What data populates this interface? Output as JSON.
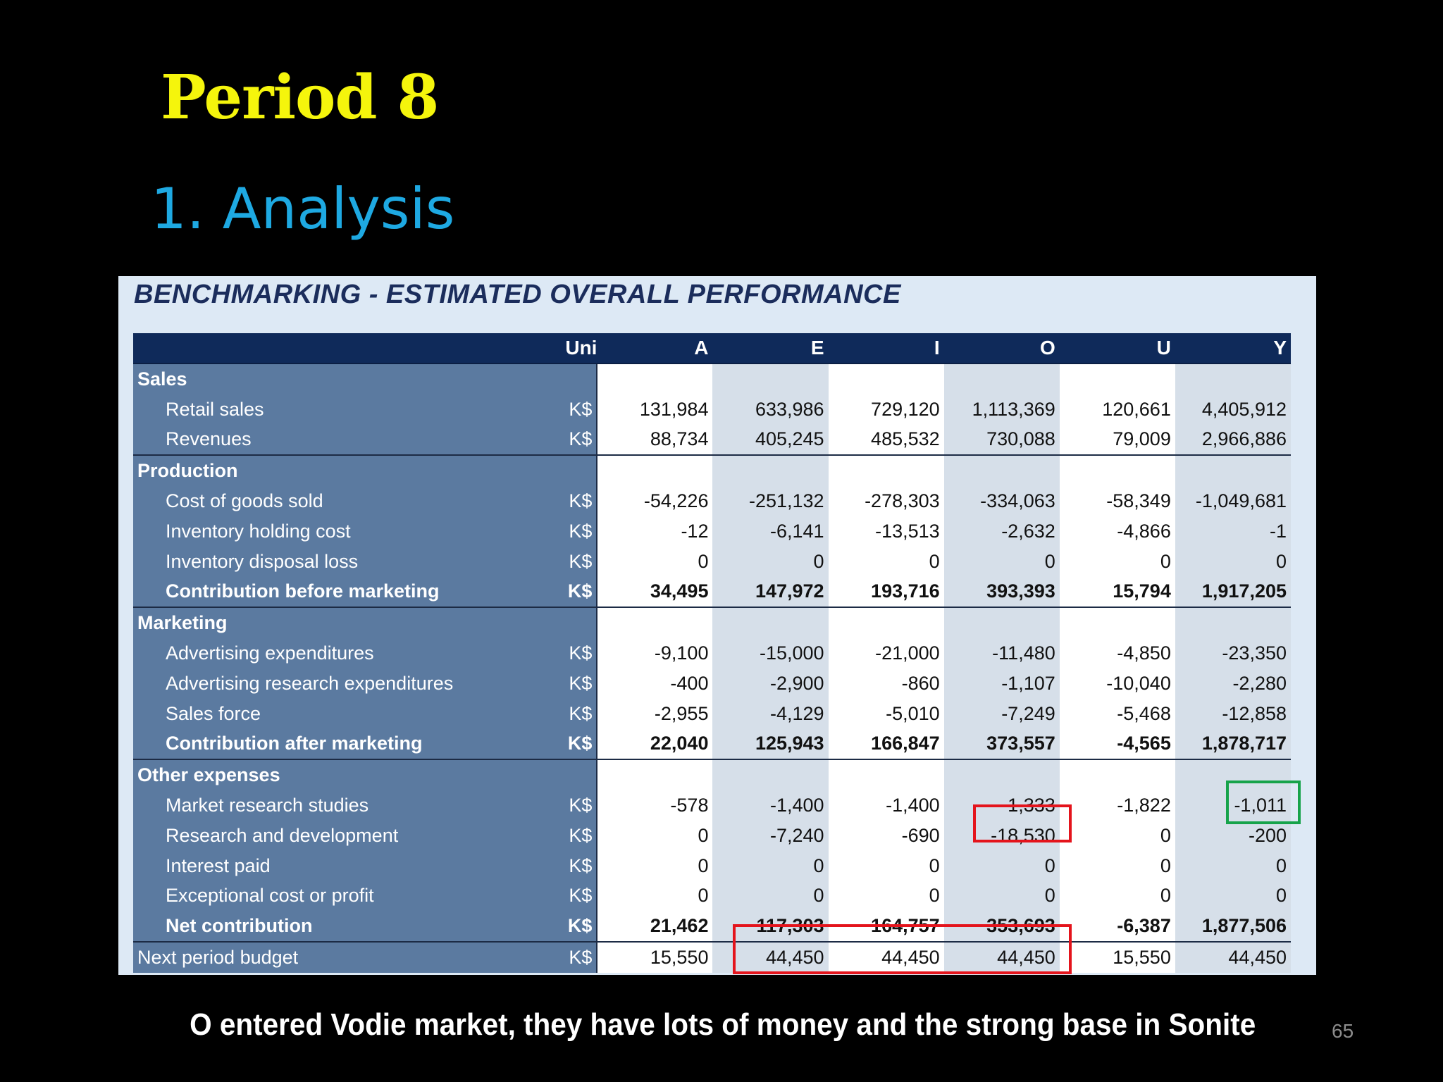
{
  "slide": {
    "title": "Period 8",
    "subtitle": "1. Analysis",
    "caption": "O entered Vodie market, they have lots of money and the strong base in Sonite",
    "page_number": "65"
  },
  "panel": {
    "title": "BENCHMARKING - ESTIMATED OVERALL PERFORMANCE"
  },
  "table": {
    "headers": [
      "",
      "Unit",
      "A",
      "E",
      "I",
      "O",
      "U",
      "Y"
    ],
    "rows": [
      {
        "type": "section",
        "label": "Sales",
        "unit": "",
        "values": [
          "",
          "",
          "",
          "",
          "",
          ""
        ]
      },
      {
        "type": "item",
        "label": "Retail sales",
        "unit": "K$",
        "values": [
          "131,984",
          "633,986",
          "729,120",
          "1,113,369",
          "120,661",
          "4,405,912"
        ]
      },
      {
        "type": "item",
        "label": "Revenues",
        "unit": "K$",
        "values": [
          "88,734",
          "405,245",
          "485,532",
          "730,088",
          "79,009",
          "2,966,886"
        ]
      },
      {
        "type": "section",
        "label": "Production",
        "unit": "",
        "values": [
          "",
          "",
          "",
          "",
          "",
          ""
        ]
      },
      {
        "type": "item",
        "label": "Cost of goods sold",
        "unit": "K$",
        "values": [
          "-54,226",
          "-251,132",
          "-278,303",
          "-334,063",
          "-58,349",
          "-1,049,681"
        ]
      },
      {
        "type": "item",
        "label": "Inventory holding cost",
        "unit": "K$",
        "values": [
          "-12",
          "-6,141",
          "-13,513",
          "-2,632",
          "-4,866",
          "-1"
        ]
      },
      {
        "type": "item",
        "label": "Inventory disposal loss",
        "unit": "K$",
        "values": [
          "0",
          "0",
          "0",
          "0",
          "0",
          "0"
        ]
      },
      {
        "type": "subtotal",
        "label": "Contribution before marketing",
        "unit": "K$",
        "values": [
          "34,495",
          "147,972",
          "193,716",
          "393,393",
          "15,794",
          "1,917,205"
        ]
      },
      {
        "type": "section",
        "label": "Marketing",
        "unit": "",
        "values": [
          "",
          "",
          "",
          "",
          "",
          ""
        ]
      },
      {
        "type": "item",
        "label": "Advertising expenditures",
        "unit": "K$",
        "values": [
          "-9,100",
          "-15,000",
          "-21,000",
          "-11,480",
          "-4,850",
          "-23,350"
        ]
      },
      {
        "type": "item",
        "label": "Advertising research expenditures",
        "unit": "K$",
        "values": [
          "-400",
          "-2,900",
          "-860",
          "-1,107",
          "-10,040",
          "-2,280"
        ]
      },
      {
        "type": "item",
        "label": "Sales force",
        "unit": "K$",
        "values": [
          "-2,955",
          "-4,129",
          "-5,010",
          "-7,249",
          "-5,468",
          "-12,858"
        ]
      },
      {
        "type": "subtotal",
        "label": "Contribution after marketing",
        "unit": "K$",
        "values": [
          "22,040",
          "125,943",
          "166,847",
          "373,557",
          "-4,565",
          "1,878,717"
        ]
      },
      {
        "type": "section",
        "label": "Other expenses",
        "unit": "",
        "values": [
          "",
          "",
          "",
          "",
          "",
          ""
        ]
      },
      {
        "type": "item",
        "label": "Market research studies",
        "unit": "K$",
        "values": [
          "-578",
          "-1,400",
          "-1,400",
          "-1,333",
          "-1,822",
          "-1,011"
        ]
      },
      {
        "type": "item",
        "label": "Research and development",
        "unit": "K$",
        "values": [
          "0",
          "-7,240",
          "-690",
          "-18,530",
          "0",
          "-200"
        ]
      },
      {
        "type": "item",
        "label": "Interest paid",
        "unit": "K$",
        "values": [
          "0",
          "0",
          "0",
          "0",
          "0",
          "0"
        ]
      },
      {
        "type": "item",
        "label": "Exceptional cost or profit",
        "unit": "K$",
        "values": [
          "0",
          "0",
          "0",
          "0",
          "0",
          "0"
        ]
      },
      {
        "type": "subtotal",
        "label": "Net contribution",
        "unit": "K$",
        "values": [
          "21,462",
          "117,303",
          "164,757",
          "353,693",
          "-6,387",
          "1,877,506"
        ]
      },
      {
        "type": "next",
        "label": "Next period budget",
        "unit": "K$",
        "values": [
          "15,550",
          "44,450",
          "44,450",
          "44,450",
          "15,550",
          "44,450"
        ]
      }
    ]
  },
  "highlights": {
    "red_color": "#e4141c",
    "green_color": "#16a34a"
  }
}
